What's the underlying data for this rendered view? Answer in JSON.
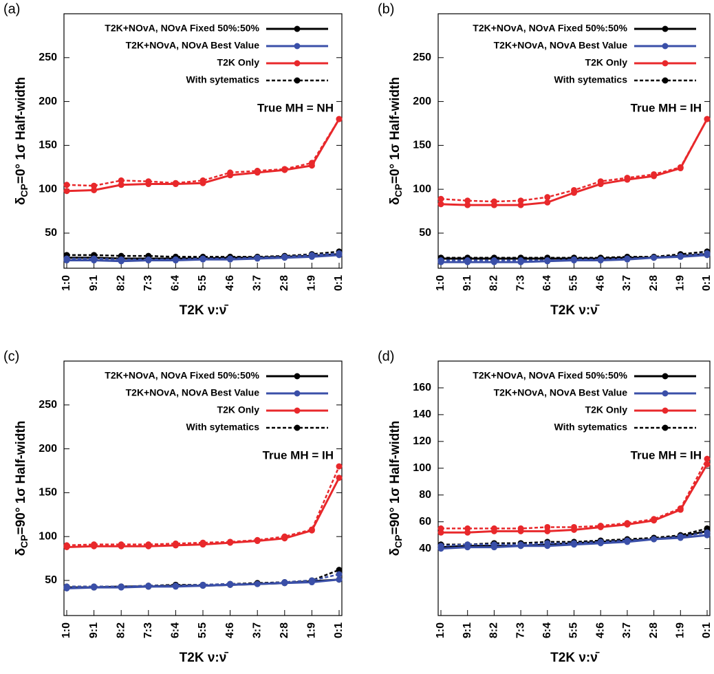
{
  "chart_data": [
    {
      "type": "line",
      "panel_label": "(a)",
      "ylabel": {
        "main": "δ",
        "sub": "CP",
        "rest": "=0° 1σ Half-width"
      },
      "xlabel": "T2K ν:ν̄",
      "annotation": "True MH = NH",
      "systematics_label": "With sytematics",
      "categories": [
        "1:0",
        "9:1",
        "8:2",
        "7:3",
        "6:4",
        "5:5",
        "4:6",
        "3:7",
        "2:8",
        "1:9",
        "0:1"
      ],
      "ylim": [
        10,
        300
      ],
      "yticks": [
        50,
        100,
        150,
        200,
        250
      ],
      "series": [
        {
          "name": "T2K+NOvA, NOvA Fixed 50%:50%",
          "color": "#000000",
          "values": [
            22,
            22,
            21,
            21,
            21,
            21,
            22,
            22,
            23,
            24,
            26
          ],
          "systematics_values": [
            25,
            25,
            24,
            24,
            23,
            23,
            23,
            23,
            24,
            26,
            29
          ]
        },
        {
          "name": "T2K+NOvA, NOvA Best Value",
          "color": "#3a4fa8",
          "values": [
            19,
            19,
            18,
            19,
            19,
            20,
            20,
            21,
            22,
            23,
            25
          ],
          "systematics_values": [
            21,
            21,
            20,
            20,
            20,
            21,
            21,
            22,
            23,
            25,
            27
          ]
        },
        {
          "name": "T2K Only",
          "color": "#e8282b",
          "values": [
            98,
            99,
            105,
            106,
            106,
            107,
            116,
            119,
            122,
            127,
            180
          ],
          "systematics_values": [
            105,
            104,
            110,
            109,
            107,
            110,
            119,
            121,
            123,
            130,
            180
          ]
        }
      ]
    },
    {
      "type": "line",
      "panel_label": "(b)",
      "ylabel": {
        "main": "δ",
        "sub": "CP",
        "rest": "=0° 1σ Half-width"
      },
      "xlabel": "T2K ν:ν̄",
      "annotation": "True MH = IH",
      "systematics_label": "With sytematics",
      "categories": [
        "1:0",
        "9:1",
        "8:2",
        "7:3",
        "6:4",
        "5:5",
        "4:6",
        "3:7",
        "2:8",
        "1:9",
        "0:1"
      ],
      "ylim": [
        10,
        300
      ],
      "yticks": [
        50,
        100,
        150,
        200,
        250
      ],
      "series": [
        {
          "name": "T2K+NOvA, NOvA Fixed 50%:50%",
          "color": "#000000",
          "values": [
            21,
            21,
            21,
            21,
            21,
            21,
            21,
            22,
            22,
            24,
            26
          ],
          "systematics_values": [
            22,
            22,
            22,
            22,
            22,
            22,
            22,
            23,
            23,
            26,
            29
          ]
        },
        {
          "name": "T2K+NOvA, NOvA Best Value",
          "color": "#3a4fa8",
          "values": [
            17,
            17,
            17,
            17,
            18,
            19,
            19,
            20,
            22,
            23,
            25
          ],
          "systematics_values": [
            19,
            19,
            19,
            19,
            19,
            20,
            20,
            21,
            22,
            24,
            27
          ]
        },
        {
          "name": "T2K Only",
          "color": "#e8282b",
          "values": [
            83,
            82,
            82,
            82,
            85,
            96,
            106,
            111,
            115,
            124,
            180
          ],
          "systematics_values": [
            89,
            87,
            86,
            87,
            91,
            99,
            109,
            113,
            117,
            125,
            180
          ]
        }
      ]
    },
    {
      "type": "line",
      "panel_label": "(c)",
      "ylabel": {
        "main": "δ",
        "sub": "CP",
        "rest": "=90° 1σ Half-width"
      },
      "xlabel": "T2K ν:ν̄",
      "annotation": "True MH = IH",
      "systematics_label": "With sytematics",
      "categories": [
        "1:0",
        "9:1",
        "8:2",
        "7:3",
        "6:4",
        "5:5",
        "4:6",
        "3:7",
        "2:8",
        "1:9",
        "0:1"
      ],
      "ylim": [
        10,
        300
      ],
      "yticks": [
        50,
        100,
        150,
        200,
        250
      ],
      "series": [
        {
          "name": "T2K+NOvA, NOvA Fixed 50%:50%",
          "color": "#000000",
          "values": [
            42,
            42,
            43,
            43,
            44,
            44,
            45,
            46,
            47,
            49,
            51
          ],
          "systematics_values": [
            43,
            43,
            43,
            44,
            45,
            45,
            46,
            47,
            48,
            50,
            62
          ]
        },
        {
          "name": "T2K+NOvA, NOvA Best Value",
          "color": "#3a4fa8",
          "values": [
            41,
            42,
            42,
            43,
            43,
            44,
            45,
            46,
            47,
            48,
            51
          ],
          "systematics_values": [
            43,
            43,
            43,
            44,
            44,
            45,
            46,
            46,
            48,
            50,
            57
          ]
        },
        {
          "name": "T2K Only",
          "color": "#e8282b",
          "values": [
            88,
            89,
            89,
            89,
            90,
            91,
            93,
            95,
            98,
            107,
            167
          ],
          "systematics_values": [
            90,
            91,
            91,
            91,
            92,
            93,
            94,
            96,
            100,
            108,
            180
          ]
        }
      ]
    },
    {
      "type": "line",
      "panel_label": "(d)",
      "ylabel": {
        "main": "δ",
        "sub": "CP",
        "rest": "=90° 1σ Half-width"
      },
      "xlabel": "T2K ν:ν̄",
      "annotation": "True MH = IH",
      "systematics_label": "With sytematics",
      "categories": [
        "1:0",
        "9:1",
        "8:2",
        "7:3",
        "6:4",
        "5:5",
        "4:6",
        "3:7",
        "2:8",
        "1:9",
        "0:1"
      ],
      "ylim": [
        -10,
        180
      ],
      "yticks": [
        40,
        60,
        80,
        100,
        120,
        140,
        160
      ],
      "series": [
        {
          "name": "T2K+NOvA, NOvA Fixed 50%:50%",
          "color": "#000000",
          "values": [
            41,
            42,
            42,
            42,
            43,
            44,
            45,
            46,
            47,
            49,
            53
          ],
          "systematics_values": [
            43,
            43,
            44,
            44,
            45,
            45,
            46,
            47,
            48,
            50,
            55
          ]
        },
        {
          "name": "T2K+NOvA, NOvA Best Value",
          "color": "#3a4fa8",
          "values": [
            40,
            41,
            41,
            42,
            42,
            43,
            44,
            45,
            47,
            48,
            50
          ],
          "systematics_values": [
            42,
            43,
            43,
            43,
            44,
            44,
            45,
            46,
            47,
            49,
            52
          ]
        },
        {
          "name": "T2K Only",
          "color": "#e8282b",
          "values": [
            52,
            52,
            53,
            53,
            53,
            54,
            56,
            58,
            61,
            69,
            103
          ],
          "systematics_values": [
            55,
            55,
            55,
            55,
            56,
            56,
            57,
            59,
            62,
            70,
            107
          ]
        }
      ]
    }
  ]
}
